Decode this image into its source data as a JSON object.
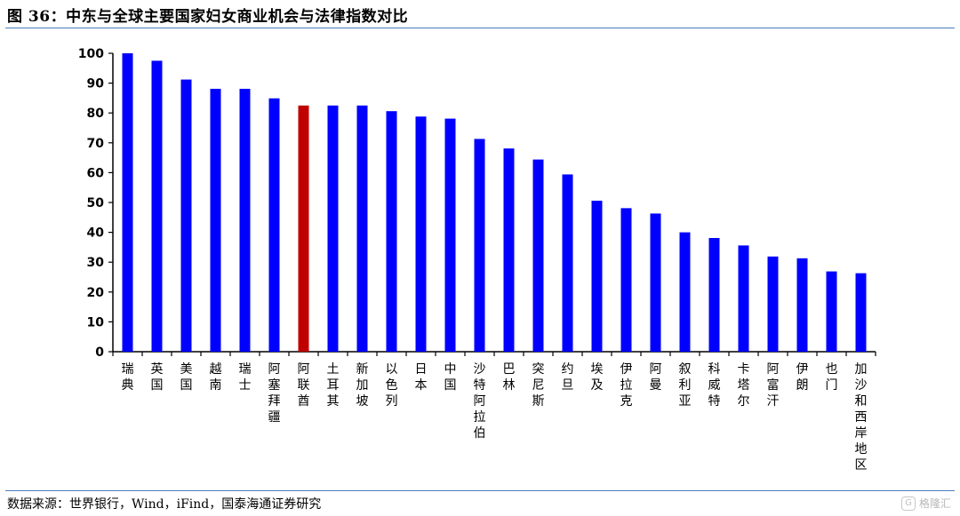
{
  "figure": {
    "title": "图 36：中东与全球主要国家妇女商业机会与法律指数对比",
    "source": "数据来源：世界银行，Wind，iFind，国泰海通证券研究",
    "watermark": "格隆汇"
  },
  "colors": {
    "bar": "#0000ff",
    "highlight": "#c00000",
    "rule": "#4a7cc0",
    "axis": "#000000"
  },
  "chart_data": {
    "type": "bar",
    "title": "",
    "xlabel": "",
    "ylabel": "",
    "ylim": [
      0,
      100
    ],
    "yticks": [
      0,
      10,
      20,
      30,
      40,
      50,
      60,
      70,
      80,
      90,
      100
    ],
    "grid": false,
    "legend": "none",
    "categories": [
      "瑞典",
      "英国",
      "美国",
      "越南",
      "瑞士",
      "阿塞拜疆",
      "阿联酋",
      "土耳其",
      "新加坡",
      "以色列",
      "日本",
      "中国",
      "沙特阿拉伯",
      "巴林",
      "突尼斯",
      "约旦",
      "埃及",
      "伊拉克",
      "阿曼",
      "叙利亚",
      "科威特",
      "卡塔尔",
      "阿富汗",
      "伊朗",
      "也门",
      "加沙和西岸地区"
    ],
    "values": [
      100,
      97.5,
      91.2,
      88.1,
      88.1,
      84.9,
      82.5,
      82.5,
      82.5,
      80.6,
      78.8,
      78.1,
      71.3,
      68.1,
      64.4,
      59.4,
      50.6,
      48.1,
      46.3,
      40.0,
      38.1,
      35.6,
      31.9,
      31.3,
      26.9,
      26.3
    ],
    "highlight_category": "阿联酋"
  }
}
